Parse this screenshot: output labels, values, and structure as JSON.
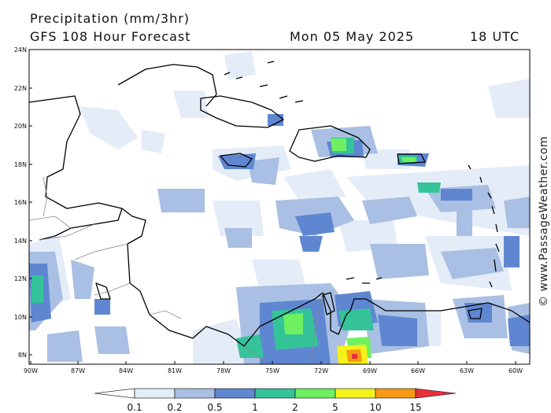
{
  "header": {
    "title": "Precipitation (mm/3hr)",
    "forecast": "GFS 108 Hour Forecast",
    "date": "Mon 05 May 2025",
    "time": "18 UTC"
  },
  "watermark": "© www.PassageWeather.com",
  "lat_labels": [
    "24N",
    "22N",
    "20N",
    "18N",
    "16N",
    "14N",
    "12N",
    "10N",
    "8N"
  ],
  "lon_labels": [
    "90W",
    "87W",
    "84W",
    "81W",
    "78W",
    "75W",
    "72W",
    "69W",
    "66W",
    "63W",
    "60W"
  ],
  "colorbar": {
    "labels": [
      "0.1",
      "0.2",
      "0.5",
      "1",
      "2",
      "5",
      "10",
      "15"
    ],
    "colors": [
      "#ffffff",
      "#e4ecf8",
      "#a9bfe3",
      "#5f86d1",
      "#35c39a",
      "#6ef060",
      "#f5f21a",
      "#f79a12",
      "#e8303b"
    ]
  }
}
